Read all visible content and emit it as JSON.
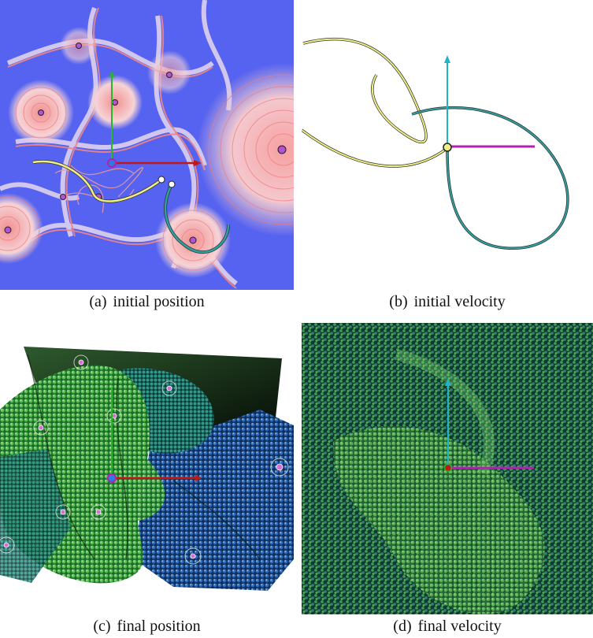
{
  "figure": {
    "panels": [
      {
        "label": "(a)",
        "caption": "initial position",
        "view": "potential field with rings, two trajectory curves and axis gizmo"
      },
      {
        "label": "(b)",
        "caption": "initial velocity",
        "view": "velocity-space curves with axis gizmo"
      },
      {
        "label": "(c)",
        "caption": "final position",
        "view": "rendered dense particle sheets (green and blue)"
      },
      {
        "label": "(d)",
        "caption": "final velocity",
        "view": "rendered particle cloud in velocity space"
      }
    ],
    "colors": {
      "field_blue": "#3d4ef0",
      "field_red": "#f26a6a",
      "yellow_curve": "#f1ef84",
      "teal_curve": "#2f9f9f",
      "axis_x": "#c01818",
      "axis_y": "#29b52b",
      "axis_magenta": "#b51fb5",
      "axis_cyan": "#22b3c9",
      "point_marker": "#b253d6"
    }
  }
}
